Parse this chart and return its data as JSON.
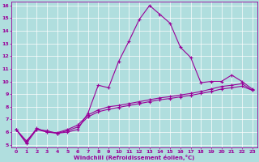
{
  "xlabel": "Windchill (Refroidissement éolien,°C)",
  "background_color": "#b0dede",
  "line_color": "#990099",
  "grid_color": "#ffffff",
  "xlim": [
    -0.5,
    23.5
  ],
  "ylim": [
    4.8,
    16.3
  ],
  "xticks": [
    0,
    1,
    2,
    3,
    4,
    5,
    6,
    7,
    8,
    9,
    10,
    11,
    12,
    13,
    14,
    15,
    16,
    17,
    18,
    19,
    20,
    21,
    22,
    23
  ],
  "yticks": [
    5,
    6,
    7,
    8,
    9,
    10,
    11,
    12,
    13,
    14,
    15,
    16
  ],
  "series1_x": [
    0,
    1,
    2,
    3,
    4,
    5,
    6,
    7,
    8,
    9,
    10,
    11,
    12,
    13,
    14,
    15,
    16,
    17,
    18,
    19,
    20,
    21,
    22,
    23
  ],
  "series1_y": [
    6.2,
    5.1,
    6.2,
    6.1,
    5.9,
    6.0,
    6.2,
    7.5,
    9.7,
    9.5,
    11.6,
    13.2,
    14.9,
    16.0,
    15.3,
    14.6,
    12.7,
    11.9,
    9.9,
    10.0,
    10.0,
    10.5,
    10.0,
    9.4
  ],
  "series2_x": [
    0,
    1,
    2,
    3,
    4,
    5,
    6,
    7,
    8,
    9,
    10,
    11,
    12,
    13,
    14,
    15,
    16,
    17,
    18,
    19,
    20,
    21,
    22,
    23
  ],
  "series2_y": [
    6.2,
    5.3,
    6.2,
    6.0,
    5.9,
    6.1,
    6.4,
    7.2,
    7.6,
    7.8,
    7.95,
    8.1,
    8.25,
    8.4,
    8.55,
    8.65,
    8.78,
    8.9,
    9.05,
    9.2,
    9.4,
    9.5,
    9.62,
    9.3
  ],
  "series3_x": [
    0,
    1,
    2,
    3,
    4,
    5,
    6,
    7,
    8,
    9,
    10,
    11,
    12,
    13,
    14,
    15,
    16,
    17,
    18,
    19,
    20,
    21,
    22,
    23
  ],
  "series3_y": [
    6.2,
    5.2,
    6.3,
    6.0,
    5.95,
    6.2,
    6.55,
    7.35,
    7.75,
    8.0,
    8.1,
    8.25,
    8.4,
    8.55,
    8.7,
    8.8,
    8.93,
    9.05,
    9.2,
    9.4,
    9.6,
    9.7,
    9.82,
    9.3
  ]
}
